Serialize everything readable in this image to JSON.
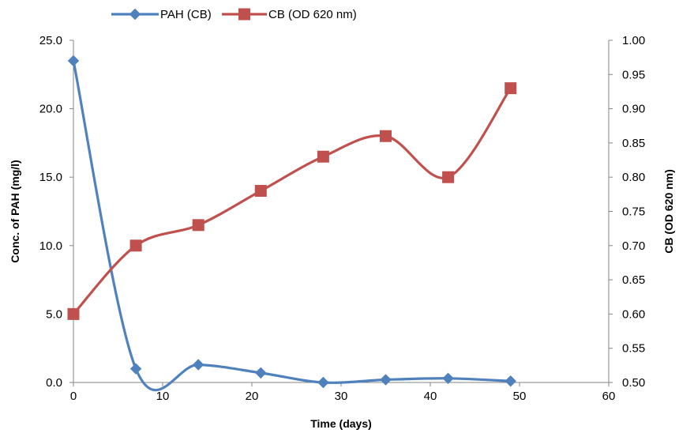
{
  "chart_data": {
    "type": "line",
    "xlabel": "Time (days)",
    "ylabel": "Conc. of PAH (mg/l)",
    "y2label": "CB (OD 620 nm)",
    "xlim": [
      0,
      60
    ],
    "ylim": [
      0,
      25
    ],
    "y2lim": [
      0.5,
      1.0
    ],
    "x_ticks": [
      "0",
      "10",
      "20",
      "30",
      "40",
      "50",
      "60"
    ],
    "y_ticks": [
      "0.0",
      "5.0",
      "10.0",
      "15.0",
      "20.0",
      "25.0"
    ],
    "y2_ticks": [
      "0.50",
      "0.55",
      "0.60",
      "0.65",
      "0.70",
      "0.75",
      "0.80",
      "0.85",
      "0.90",
      "0.95",
      "1.00"
    ],
    "grid": false,
    "legend_position": "top",
    "smooth": true,
    "series": [
      {
        "name": "PAH (CB)",
        "axis": "left",
        "color": "#4f81bd",
        "marker": "diamond",
        "x": [
          0,
          7,
          14,
          21,
          28,
          35,
          42,
          49
        ],
        "values": [
          23.5,
          1.0,
          1.3,
          0.7,
          0.0,
          0.2,
          0.3,
          0.1
        ]
      },
      {
        "name": "CB (OD 620 nm)",
        "axis": "right",
        "color": "#c0504d",
        "marker": "square",
        "x": [
          0,
          7,
          14,
          21,
          28,
          35,
          42,
          49
        ],
        "values": [
          0.6,
          0.7,
          0.73,
          0.78,
          0.83,
          0.86,
          0.8,
          0.93
        ]
      }
    ]
  }
}
